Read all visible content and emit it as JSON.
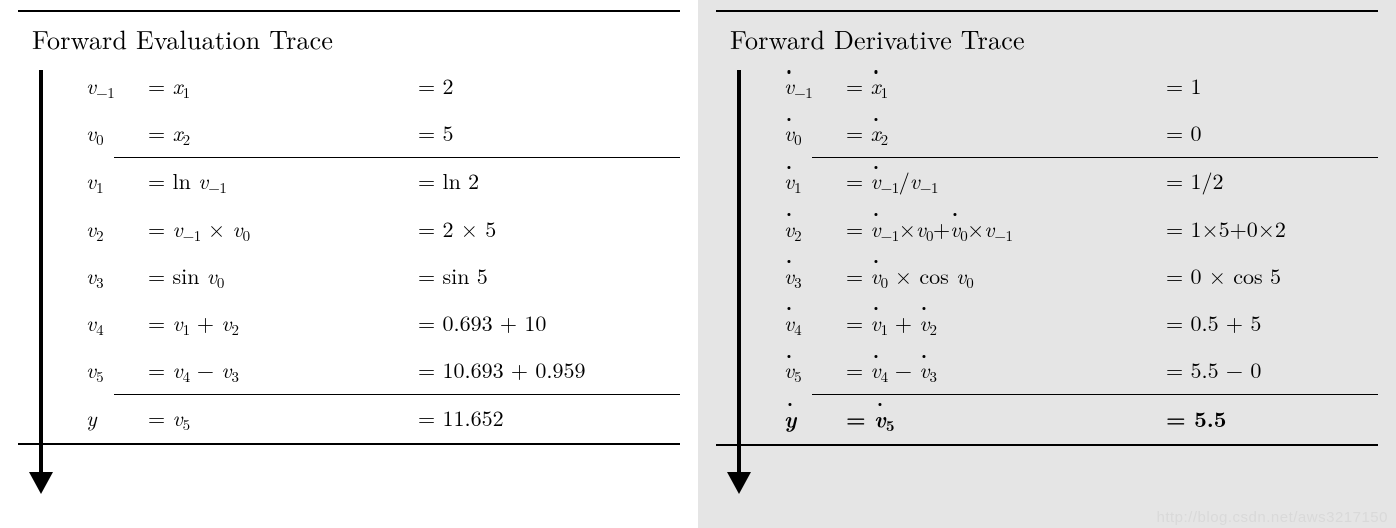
{
  "leftPanel": {
    "title": "Forward Evaluation Trace",
    "background": "#ffffff",
    "sections": [
      [
        {
          "var": {
            "sym": "v",
            "sub": "-1"
          },
          "expr": [
            {
              "t": "eq"
            },
            {
              "t": "var",
              "sym": "x",
              "sub": "1"
            }
          ],
          "val": [
            {
              "t": "eq"
            },
            {
              "t": "n",
              "v": "2"
            }
          ]
        },
        {
          "var": {
            "sym": "v",
            "sub": "0"
          },
          "expr": [
            {
              "t": "eq"
            },
            {
              "t": "var",
              "sym": "x",
              "sub": "2"
            }
          ],
          "val": [
            {
              "t": "eq"
            },
            {
              "t": "n",
              "v": "5"
            }
          ]
        }
      ],
      [
        {
          "var": {
            "sym": "v",
            "sub": "1"
          },
          "expr": [
            {
              "t": "eq"
            },
            {
              "t": "fn",
              "v": "ln "
            },
            {
              "t": "var",
              "sym": "v",
              "sub": "-1"
            }
          ],
          "val": [
            {
              "t": "eq"
            },
            {
              "t": "fn",
              "v": "ln "
            },
            {
              "t": "n",
              "v": "2"
            }
          ]
        },
        {
          "var": {
            "sym": "v",
            "sub": "2"
          },
          "expr": [
            {
              "t": "eq"
            },
            {
              "t": "var",
              "sym": "v",
              "sub": "-1"
            },
            {
              "t": "op",
              "v": " × "
            },
            {
              "t": "var",
              "sym": "v",
              "sub": "0"
            }
          ],
          "val": [
            {
              "t": "eq"
            },
            {
              "t": "n",
              "v": "2"
            },
            {
              "t": "op",
              "v": " × "
            },
            {
              "t": "n",
              "v": "5"
            }
          ]
        },
        {
          "var": {
            "sym": "v",
            "sub": "3"
          },
          "expr": [
            {
              "t": "eq"
            },
            {
              "t": "fn",
              "v": "sin "
            },
            {
              "t": "var",
              "sym": "v",
              "sub": "0"
            }
          ],
          "val": [
            {
              "t": "eq"
            },
            {
              "t": "fn",
              "v": "sin "
            },
            {
              "t": "n",
              "v": "5"
            }
          ]
        },
        {
          "var": {
            "sym": "v",
            "sub": "4"
          },
          "expr": [
            {
              "t": "eq"
            },
            {
              "t": "var",
              "sym": "v",
              "sub": "1"
            },
            {
              "t": "op",
              "v": " + "
            },
            {
              "t": "var",
              "sym": "v",
              "sub": "2"
            }
          ],
          "val": [
            {
              "t": "eq"
            },
            {
              "t": "n",
              "v": "0.693"
            },
            {
              "t": "op",
              "v": " + "
            },
            {
              "t": "n",
              "v": "10"
            }
          ]
        },
        {
          "var": {
            "sym": "v",
            "sub": "5"
          },
          "expr": [
            {
              "t": "eq"
            },
            {
              "t": "var",
              "sym": "v",
              "sub": "4"
            },
            {
              "t": "op",
              "v": " − "
            },
            {
              "t": "var",
              "sym": "v",
              "sub": "3"
            }
          ],
          "val": [
            {
              "t": "eq"
            },
            {
              "t": "n",
              "v": "10.693"
            },
            {
              "t": "op",
              "v": " + "
            },
            {
              "t": "n",
              "v": "0.959"
            }
          ]
        }
      ],
      [
        {
          "var": {
            "sym": "y"
          },
          "expr": [
            {
              "t": "eq"
            },
            {
              "t": "var",
              "sym": "v",
              "sub": "5"
            }
          ],
          "val": [
            {
              "t": "eq"
            },
            {
              "t": "n",
              "v": "11.652"
            }
          ]
        }
      ]
    ]
  },
  "rightPanel": {
    "title": "Forward Derivative Trace",
    "background": "#e5e5e5",
    "sections": [
      [
        {
          "var": {
            "sym": "v",
            "sub": "-1",
            "dot": true
          },
          "expr": [
            {
              "t": "eq"
            },
            {
              "t": "var",
              "sym": "x",
              "sub": "1",
              "dot": true
            }
          ],
          "val": [
            {
              "t": "eq"
            },
            {
              "t": "n",
              "v": "1"
            }
          ]
        },
        {
          "var": {
            "sym": "v",
            "sub": "0",
            "dot": true
          },
          "expr": [
            {
              "t": "eq"
            },
            {
              "t": "var",
              "sym": "x",
              "sub": "2",
              "dot": true
            }
          ],
          "val": [
            {
              "t": "eq"
            },
            {
              "t": "n",
              "v": "0"
            }
          ]
        }
      ],
      [
        {
          "var": {
            "sym": "v",
            "sub": "1",
            "dot": true
          },
          "expr": [
            {
              "t": "eq"
            },
            {
              "t": "var",
              "sym": "v",
              "sub": "-1",
              "dot": true
            },
            {
              "t": "op",
              "v": "/"
            },
            {
              "t": "var",
              "sym": "v",
              "sub": "-1"
            }
          ],
          "val": [
            {
              "t": "eq"
            },
            {
              "t": "n",
              "v": "1"
            },
            {
              "t": "op",
              "v": "/"
            },
            {
              "t": "n",
              "v": "2"
            }
          ]
        },
        {
          "var": {
            "sym": "v",
            "sub": "2",
            "dot": true
          },
          "expr": [
            {
              "t": "eq"
            },
            {
              "t": "var",
              "sym": "v",
              "sub": "-1",
              "dot": true
            },
            {
              "t": "op",
              "v": "×"
            },
            {
              "t": "var",
              "sym": "v",
              "sub": "0"
            },
            {
              "t": "op",
              "v": "+"
            },
            {
              "t": "var",
              "sym": "v",
              "sub": "0",
              "dot": true
            },
            {
              "t": "op",
              "v": "×"
            },
            {
              "t": "var",
              "sym": "v",
              "sub": "-1"
            }
          ],
          "val": [
            {
              "t": "eq"
            },
            {
              "t": "n",
              "v": "1"
            },
            {
              "t": "op",
              "v": "×"
            },
            {
              "t": "n",
              "v": "5"
            },
            {
              "t": "op",
              "v": "+"
            },
            {
              "t": "n",
              "v": "0"
            },
            {
              "t": "op",
              "v": "×"
            },
            {
              "t": "n",
              "v": "2"
            }
          ]
        },
        {
          "var": {
            "sym": "v",
            "sub": "3",
            "dot": true
          },
          "expr": [
            {
              "t": "eq"
            },
            {
              "t": "var",
              "sym": "v",
              "sub": "0",
              "dot": true
            },
            {
              "t": "op",
              "v": " × "
            },
            {
              "t": "fn",
              "v": "cos "
            },
            {
              "t": "var",
              "sym": "v",
              "sub": "0"
            }
          ],
          "val": [
            {
              "t": "eq"
            },
            {
              "t": "n",
              "v": "0"
            },
            {
              "t": "op",
              "v": " × "
            },
            {
              "t": "fn",
              "v": "cos "
            },
            {
              "t": "n",
              "v": "5"
            }
          ]
        },
        {
          "var": {
            "sym": "v",
            "sub": "4",
            "dot": true
          },
          "expr": [
            {
              "t": "eq"
            },
            {
              "t": "var",
              "sym": "v",
              "sub": "1",
              "dot": true
            },
            {
              "t": "op",
              "v": " + "
            },
            {
              "t": "var",
              "sym": "v",
              "sub": "2",
              "dot": true
            }
          ],
          "val": [
            {
              "t": "eq"
            },
            {
              "t": "n",
              "v": "0.5"
            },
            {
              "t": "op",
              "v": " + "
            },
            {
              "t": "n",
              "v": "5"
            }
          ]
        },
        {
          "var": {
            "sym": "v",
            "sub": "5",
            "dot": true
          },
          "expr": [
            {
              "t": "eq"
            },
            {
              "t": "var",
              "sym": "v",
              "sub": "4",
              "dot": true
            },
            {
              "t": "op",
              "v": " − "
            },
            {
              "t": "var",
              "sym": "v",
              "sub": "3",
              "dot": true
            }
          ],
          "val": [
            {
              "t": "eq"
            },
            {
              "t": "n",
              "v": "5.5"
            },
            {
              "t": "op",
              "v": " − "
            },
            {
              "t": "n",
              "v": "0"
            }
          ]
        }
      ],
      [
        {
          "bold": true,
          "var": {
            "sym": "y",
            "dot": true
          },
          "expr": [
            {
              "t": "eq"
            },
            {
              "t": "var",
              "sym": "v",
              "sub": "5",
              "dot": true
            }
          ],
          "val": [
            {
              "t": "eq"
            },
            {
              "t": "n",
              "v": "5.5"
            }
          ]
        }
      ]
    ]
  },
  "watermark": "http://blog.csdn.net/aws3217150",
  "colors": {
    "rule": "#000000",
    "text": "#000000",
    "grayPanel": "#e5e5e5",
    "watermark": "#d9d9d9"
  }
}
